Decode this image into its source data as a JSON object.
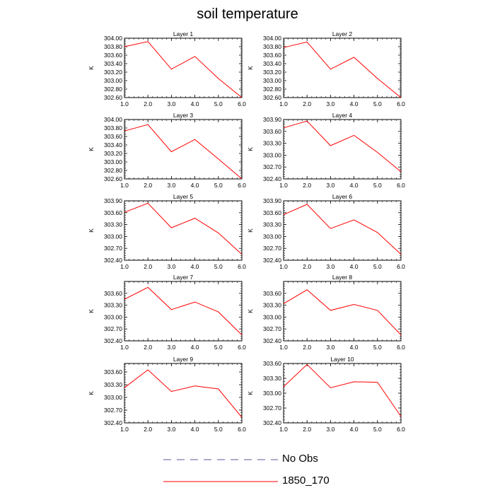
{
  "title": "soil temperature",
  "colors": {
    "line": "#ff0000",
    "no_obs": "#5a5aa0",
    "axis": "#000000"
  },
  "legend": [
    {
      "label": "No Obs",
      "style": "dashed",
      "color": "#5a5aa0"
    },
    {
      "label": "1850_170",
      "style": "solid",
      "color": "#ff0000"
    }
  ],
  "chart_data": [
    {
      "type": "line",
      "title": "Layer 1",
      "ylabel": "K",
      "x": [
        1,
        2,
        3,
        4,
        5,
        6
      ],
      "xticks": [
        "1.0",
        "2.0",
        "3.0",
        "4.0",
        "5.0",
        "6.0"
      ],
      "xlim": [
        1,
        6
      ],
      "ylim": [
        302.6,
        304.0
      ],
      "yticks": [
        "302.60",
        "302.80",
        "303.00",
        "303.20",
        "303.40",
        "303.60",
        "303.80",
        "304.00"
      ],
      "ytick_values": [
        302.6,
        302.8,
        303.0,
        303.2,
        303.4,
        303.6,
        303.8,
        304.0
      ],
      "series": [
        {
          "name": "1850_170",
          "values": [
            303.8,
            303.92,
            303.27,
            303.57,
            303.05,
            302.6
          ]
        }
      ]
    },
    {
      "type": "line",
      "title": "Layer 2",
      "ylabel": "K",
      "x": [
        1,
        2,
        3,
        4,
        5,
        6
      ],
      "xticks": [
        "1.0",
        "2.0",
        "3.0",
        "4.0",
        "5.0",
        "6.0"
      ],
      "xlim": [
        1,
        6
      ],
      "ylim": [
        302.6,
        304.0
      ],
      "yticks": [
        "302.60",
        "302.80",
        "303.00",
        "303.20",
        "303.40",
        "303.60",
        "303.80",
        "304.00"
      ],
      "ytick_values": [
        302.6,
        302.8,
        303.0,
        303.2,
        303.4,
        303.6,
        303.8,
        304.0
      ],
      "series": [
        {
          "name": "1850_170",
          "values": [
            303.78,
            303.91,
            303.27,
            303.55,
            303.05,
            302.6
          ]
        }
      ]
    },
    {
      "type": "line",
      "title": "Layer 3",
      "ylabel": "K",
      "x": [
        1,
        2,
        3,
        4,
        5,
        6
      ],
      "xticks": [
        "1.0",
        "2.0",
        "3.0",
        "4.0",
        "5.0",
        "6.0"
      ],
      "xlim": [
        1,
        6
      ],
      "ylim": [
        302.6,
        304.0
      ],
      "yticks": [
        "302.60",
        "302.80",
        "303.00",
        "303.20",
        "303.40",
        "303.60",
        "303.80",
        "304.00"
      ],
      "ytick_values": [
        302.6,
        302.8,
        303.0,
        303.2,
        303.4,
        303.6,
        303.8,
        304.0
      ],
      "series": [
        {
          "name": "1850_170",
          "values": [
            303.73,
            303.88,
            303.24,
            303.53,
            303.07,
            302.6
          ]
        }
      ]
    },
    {
      "type": "line",
      "title": "Layer 4",
      "ylabel": "K",
      "x": [
        1,
        2,
        3,
        4,
        5,
        6
      ],
      "xticks": [
        "1.0",
        "2.0",
        "3.0",
        "4.0",
        "5.0",
        "6.0"
      ],
      "xlim": [
        1,
        6
      ],
      "ylim": [
        302.4,
        303.9
      ],
      "yticks": [
        "302.40",
        "302.70",
        "303.00",
        "303.30",
        "303.60",
        "303.90"
      ],
      "ytick_values": [
        302.4,
        302.7,
        303.0,
        303.3,
        303.6,
        303.9
      ],
      "series": [
        {
          "name": "1850_170",
          "values": [
            303.69,
            303.86,
            303.24,
            303.5,
            303.07,
            302.58
          ]
        }
      ]
    },
    {
      "type": "line",
      "title": "Layer 5",
      "ylabel": "K",
      "x": [
        1,
        2,
        3,
        4,
        5,
        6
      ],
      "xticks": [
        "1.0",
        "2.0",
        "3.0",
        "4.0",
        "5.0",
        "6.0"
      ],
      "xlim": [
        1,
        6
      ],
      "ylim": [
        302.4,
        303.9
      ],
      "yticks": [
        "302.40",
        "302.70",
        "303.00",
        "303.30",
        "303.60",
        "303.90"
      ],
      "ytick_values": [
        302.4,
        302.7,
        303.0,
        303.3,
        303.6,
        303.9
      ],
      "series": [
        {
          "name": "1850_170",
          "values": [
            303.61,
            303.84,
            303.22,
            303.46,
            303.09,
            302.55
          ]
        }
      ]
    },
    {
      "type": "line",
      "title": "Layer 6",
      "ylabel": "K",
      "x": [
        1,
        2,
        3,
        4,
        5,
        6
      ],
      "xticks": [
        "1.0",
        "2.0",
        "3.0",
        "4.0",
        "5.0",
        "6.0"
      ],
      "xlim": [
        1,
        6
      ],
      "ylim": [
        302.4,
        303.9
      ],
      "yticks": [
        "302.40",
        "302.70",
        "303.00",
        "303.30",
        "303.60",
        "303.90"
      ],
      "ytick_values": [
        302.4,
        302.7,
        303.0,
        303.3,
        303.6,
        303.9
      ],
      "series": [
        {
          "name": "1850_170",
          "values": [
            303.55,
            303.81,
            303.2,
            303.42,
            303.1,
            302.55
          ]
        }
      ]
    },
    {
      "type": "line",
      "title": "Layer 7",
      "ylabel": "K",
      "x": [
        1,
        2,
        3,
        4,
        5,
        6
      ],
      "xticks": [
        "1.0",
        "2.0",
        "3.0",
        "4.0",
        "5.0",
        "6.0"
      ],
      "xlim": [
        1,
        6
      ],
      "ylim": [
        302.4,
        303.9
      ],
      "yticks": [
        "302.40",
        "302.70",
        "303.00",
        "303.30",
        "303.60"
      ],
      "ytick_values": [
        302.4,
        302.7,
        303.0,
        303.3,
        303.6
      ],
      "series": [
        {
          "name": "1850_170",
          "values": [
            303.45,
            303.75,
            303.19,
            303.38,
            303.13,
            302.55
          ]
        }
      ]
    },
    {
      "type": "line",
      "title": "Layer 8",
      "ylabel": "K",
      "x": [
        1,
        2,
        3,
        4,
        5,
        6
      ],
      "xticks": [
        "1.0",
        "2.0",
        "3.0",
        "4.0",
        "5.0",
        "6.0"
      ],
      "xlim": [
        1,
        6
      ],
      "ylim": [
        302.4,
        303.9
      ],
      "yticks": [
        "302.40",
        "302.70",
        "303.00",
        "303.30",
        "303.60"
      ],
      "ytick_values": [
        302.4,
        302.7,
        303.0,
        303.3,
        303.6
      ],
      "series": [
        {
          "name": "1850_170",
          "values": [
            303.34,
            303.69,
            303.17,
            303.32,
            303.17,
            302.55
          ]
        }
      ]
    },
    {
      "type": "line",
      "title": "Layer 9",
      "ylabel": "K",
      "x": [
        1,
        2,
        3,
        4,
        5,
        6
      ],
      "xticks": [
        "1.0",
        "2.0",
        "3.0",
        "4.0",
        "5.0",
        "6.0"
      ],
      "xlim": [
        1,
        6
      ],
      "ylim": [
        302.4,
        303.8
      ],
      "yticks": [
        "302.40",
        "302.70",
        "303.00",
        "303.30",
        "303.60"
      ],
      "ytick_values": [
        302.4,
        302.7,
        303.0,
        303.3,
        303.6
      ],
      "series": [
        {
          "name": "1850_170",
          "values": [
            303.23,
            303.65,
            303.14,
            303.27,
            303.2,
            302.53
          ]
        }
      ]
    },
    {
      "type": "line",
      "title": "Layer 10",
      "ylabel": "K",
      "x": [
        1,
        2,
        3,
        4,
        5,
        6
      ],
      "xticks": [
        "1.0",
        "2.0",
        "3.0",
        "4.0",
        "5.0",
        "6.0"
      ],
      "xlim": [
        1,
        6
      ],
      "ylim": [
        302.4,
        303.6
      ],
      "yticks": [
        "302.40",
        "302.70",
        "303.00",
        "303.30",
        "303.60"
      ],
      "ytick_values": [
        302.4,
        302.7,
        303.0,
        303.3,
        303.6
      ],
      "series": [
        {
          "name": "1850_170",
          "values": [
            303.13,
            303.58,
            303.11,
            303.23,
            303.22,
            302.53
          ]
        }
      ]
    }
  ]
}
